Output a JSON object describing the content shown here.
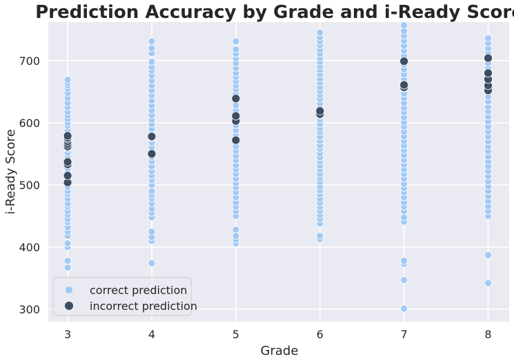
{
  "colors": {
    "background": "#eaeaf2",
    "grid": "#ffffff",
    "correct": "#a1c9f4",
    "incorrect": "#3d4d63"
  },
  "chart_data": {
    "type": "scatter",
    "title": "Prediction Accuracy by Grade and i-Ready Score",
    "xlabel": "Grade",
    "ylabel": "i-Ready Score",
    "x_ticks": [
      "3",
      "4",
      "5",
      "6",
      "7",
      "8"
    ],
    "y_ticks": [
      "300",
      "400",
      "500",
      "600",
      "700"
    ],
    "xlim": [
      2.77,
      8.25
    ],
    "ylim": [
      280,
      762
    ],
    "grid": true,
    "legend": {
      "position": "lower-left",
      "entries": [
        "correct prediction",
        "incorrect prediction"
      ]
    },
    "series": [
      {
        "name": "correct prediction",
        "color": "#a1c9f4",
        "groups": [
          {
            "x": 3,
            "y": [
              367,
              378,
              400,
              406,
              418,
              425,
              432,
              440,
              445,
              452,
              458,
              465,
              470,
              478,
              485,
              490,
              497,
              510,
              520,
              526,
              532,
              540,
              546,
              552,
              558,
              564,
              588,
              595,
              600,
              606,
              612,
              618,
              625,
              632,
              640,
              648,
              655,
              660,
              664,
              669
            ]
          },
          {
            "x": 4,
            "y": [
              374,
              410,
              416,
              425,
              448,
              455,
              462,
              470,
              478,
              484,
              490,
              500,
              508,
              515,
              522,
              530,
              538,
              545,
              552,
              560,
              568,
              575,
              590,
              598,
              605,
              612,
              620,
              628,
              636,
              644,
              652,
              660,
              668,
              676,
              684,
              690,
              698,
              712,
              720,
              731
            ]
          },
          {
            "x": 5,
            "y": [
              406,
              412,
              418,
              428,
              450,
              458,
              465,
              472,
              480,
              488,
              496,
              503,
              510,
              518,
              525,
              532,
              540,
              547,
              555,
              562,
              580,
              588,
              596,
              620,
              628,
              646,
              654,
              660,
              667,
              674,
              680,
              688,
              696,
              704,
              711,
              718,
              731
            ]
          },
          {
            "x": 6,
            "y": [
              413,
              418,
              438,
              445,
              452,
              458,
              465,
              471,
              478,
              485,
              491,
              498,
              505,
              511,
              518,
              525,
              531,
              538,
              544,
              551,
              558,
              564,
              571,
              578,
              585,
              591,
              598,
              605,
              611,
              625,
              631,
              638,
              645,
              651,
              658,
              665,
              671,
              678,
              685,
              691,
              698,
              705,
              711,
              718,
              725,
              731,
              738,
              745
            ]
          },
          {
            "x": 7,
            "y": [
              301,
              347,
              373,
              378,
              441,
              448,
              458,
              465,
              472,
              480,
              488,
              495,
              502,
              510,
              518,
              525,
              533,
              540,
              548,
              556,
              563,
              571,
              578,
              586,
              594,
              601,
              609,
              617,
              624,
              632,
              640,
              647,
              655,
              670,
              678,
              686,
              694,
              708,
              716,
              724,
              732,
              740,
              748,
              757
            ]
          },
          {
            "x": 8,
            "y": [
              342,
              387,
              450,
              458,
              466,
              474,
              482,
              490,
              498,
              506,
              514,
              522,
              530,
              538,
              546,
              554,
              562,
              570,
              578,
              586,
              594,
              602,
              610,
              618,
              626,
              634,
              642,
              664,
              688,
              696,
              712,
              720,
              728,
              736
            ]
          }
        ]
      },
      {
        "name": "incorrect prediction",
        "color": "#3d4d63",
        "groups": [
          {
            "x": 3,
            "y": [
              504,
              515,
              533,
              537,
              562,
              566,
              570,
              574,
              576,
              579
            ]
          },
          {
            "x": 4,
            "y": [
              550,
              578
            ]
          },
          {
            "x": 5,
            "y": [
              572,
              603,
              611,
              639
            ]
          },
          {
            "x": 6,
            "y": [
              614,
              619
            ]
          },
          {
            "x": 7,
            "y": [
              657,
              661,
              699
            ]
          },
          {
            "x": 8,
            "y": [
              652,
              660,
              670,
              680,
              704
            ]
          }
        ]
      }
    ]
  }
}
